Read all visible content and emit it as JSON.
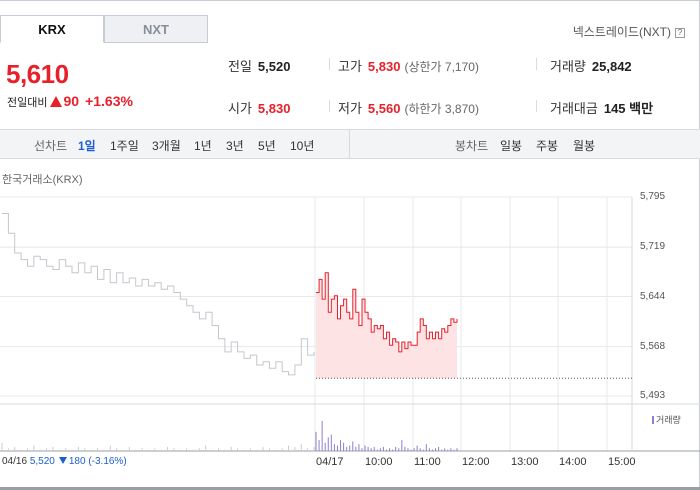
{
  "tabs": [
    {
      "label": "KRX",
      "active": true
    },
    {
      "label": "NXT",
      "active": false
    }
  ],
  "nxt_link": "넥스트레이드(NXT)",
  "quote": {
    "price": "5,610",
    "change_label": "전일대비",
    "change_value": "90",
    "change_pct": "+1.63%"
  },
  "stats": {
    "prev_close": {
      "label": "전일",
      "value": "5,520"
    },
    "high": {
      "label": "고가",
      "value": "5,830",
      "sub": "(상한가 7,170)"
    },
    "volume": {
      "label": "거래량",
      "value": "25,842"
    },
    "open": {
      "label": "시가",
      "value": "5,830"
    },
    "low": {
      "label": "저가",
      "value": "5,560",
      "sub": "(하한가 3,870)"
    },
    "amount": {
      "label": "거래대금",
      "value": "145 백만"
    }
  },
  "toolbar": {
    "line_label": "선차트",
    "line_periods": [
      "1일",
      "1주일",
      "3개월",
      "1년",
      "3년",
      "5년",
      "10년"
    ],
    "active_period": "1일",
    "candle_label": "봉차트",
    "candle_periods": [
      "일봉",
      "주봉",
      "월봉"
    ]
  },
  "chart": {
    "source": "한국거래소(KRX)",
    "volume_legend": "거래량",
    "prev_day": {
      "date": "04/16",
      "price": "5,520",
      "change": "180",
      "pct": "(-3.16%)"
    },
    "colors": {
      "up": "#e8202a",
      "fill": "#fde3e4",
      "prev": "#c4c7cc",
      "volume": "#8b7fd0",
      "grid": "#e6e8eb"
    }
  },
  "chart_data": {
    "type": "line",
    "ylim": [
      5493,
      5795
    ],
    "y_ticks": [
      "5,795",
      "5,719",
      "5,644",
      "5,568",
      "5,493"
    ],
    "x_ticks": [
      "04/17",
      "10:00",
      "11:00",
      "12:00",
      "13:00",
      "14:00",
      "15:00"
    ],
    "reference_price": 5520,
    "prev_day_series": [
      5770,
      5740,
      5710,
      5700,
      5690,
      5705,
      5700,
      5690,
      5685,
      5700,
      5690,
      5680,
      5695,
      5680,
      5690,
      5670,
      5685,
      5665,
      5680,
      5665,
      5672,
      5660,
      5670,
      5660,
      5665,
      5655,
      5660,
      5650,
      5640,
      5630,
      5620,
      5610,
      5620,
      5600,
      5580,
      5560,
      5575,
      5560,
      5550,
      5555,
      5540,
      5545,
      5535,
      5545,
      5530,
      5525,
      5540,
      5580,
      5555,
      5560
    ],
    "today_series": [
      5650,
      5670,
      5640,
      5680,
      5620,
      5640,
      5645,
      5610,
      5630,
      5640,
      5620,
      5610,
      5655,
      5620,
      5600,
      5640,
      5620,
      5610,
      5590,
      5600,
      5595,
      5600,
      5580,
      5590,
      5570,
      5580,
      5575,
      5560,
      5575,
      5565,
      5575,
      5570,
      5570,
      5590,
      5610,
      5600,
      5580,
      5590,
      5580,
      5590,
      5580,
      5595,
      5590,
      5600,
      5610,
      5605,
      5610
    ],
    "volume_prev": [
      6,
      2,
      3,
      1,
      2,
      4,
      1,
      2,
      3,
      1,
      2,
      1,
      3,
      2,
      1,
      2,
      1,
      4,
      2,
      1,
      3,
      1,
      2,
      1,
      2,
      1,
      3,
      2,
      1,
      2,
      1,
      2,
      4,
      1,
      2,
      1,
      3,
      2,
      1,
      2,
      1,
      3,
      2,
      1,
      2,
      4,
      3,
      5,
      2,
      3
    ],
    "volume_today": [
      14,
      8,
      22,
      6,
      10,
      12,
      5,
      4,
      8,
      6,
      3,
      4,
      7,
      3,
      5,
      2,
      4,
      3,
      2,
      3,
      1,
      2,
      3,
      1,
      2,
      1,
      3,
      2,
      8,
      3,
      2,
      1,
      2,
      4,
      2,
      1,
      5,
      2,
      1,
      2,
      3,
      1,
      2,
      1,
      2,
      1,
      2
    ]
  }
}
